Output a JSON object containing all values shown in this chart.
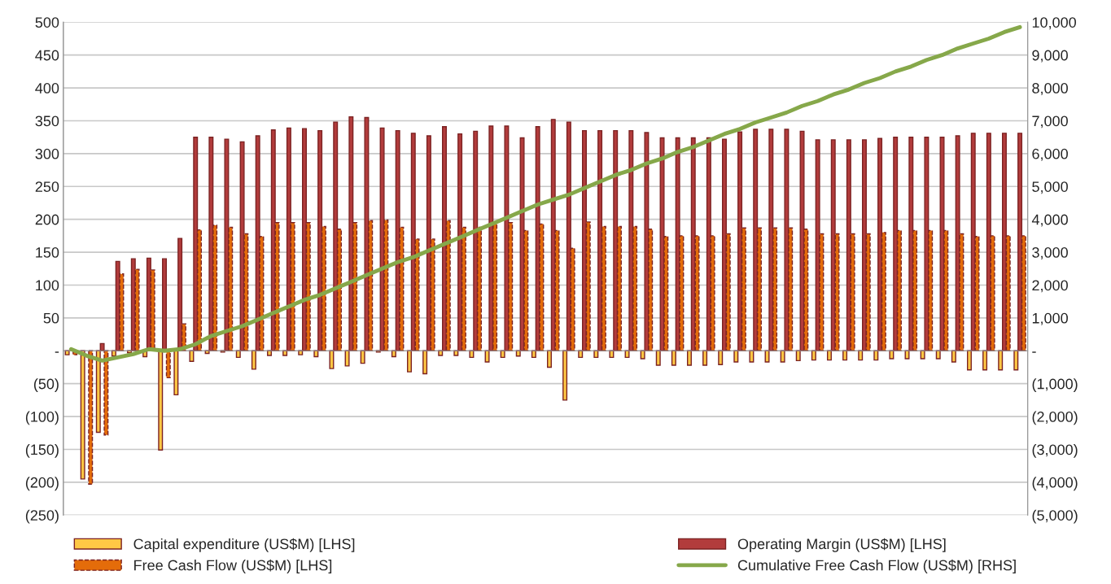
{
  "chart_data": {
    "type": "bar",
    "categories": [
      null,
      null,
      null,
      null,
      null,
      null,
      null,
      null,
      null,
      null,
      null,
      null,
      null,
      null,
      null,
      null,
      null,
      null,
      null,
      null,
      null,
      null,
      null,
      null,
      null,
      null,
      null,
      null,
      null,
      null,
      null,
      null,
      null,
      null,
      null,
      null,
      null,
      null,
      null,
      null,
      null,
      null,
      null,
      null,
      null,
      null,
      null,
      null,
      null,
      null,
      null,
      null,
      null,
      null,
      null,
      null,
      null,
      null,
      null,
      null,
      null,
      null
    ],
    "series": [
      {
        "name": "Capital expenditure (US$M) [LHS]",
        "color": "#ffc845",
        "values": [
          -6,
          -195,
          -124,
          -8,
          -3,
          -9,
          -151,
          -67,
          -16,
          -4,
          -2,
          -10,
          -28,
          -7,
          -7,
          -6,
          -9,
          -27,
          -23,
          -19,
          -2,
          -9,
          -32,
          -35,
          -7,
          -7,
          -10,
          -17,
          -10,
          -8,
          -10,
          -25,
          -75,
          -10,
          -10,
          -10,
          -10,
          -12,
          -22,
          -22,
          -22,
          -22,
          -21,
          -17,
          -17,
          -17,
          -17,
          -15,
          -14,
          -14,
          -14,
          -14,
          -14,
          -12,
          -12,
          -12,
          -12,
          -17,
          -29,
          -29,
          -29,
          -29
        ]
      },
      {
        "name": "Operating Margin (US$M) [LHS]",
        "color": "#b23c3c",
        "values": [
          null,
          null,
          11,
          136,
          140,
          141,
          140,
          171,
          325,
          325,
          322,
          318,
          327,
          336,
          339,
          338,
          335,
          348,
          356,
          355,
          339,
          335,
          331,
          327,
          341,
          330,
          334,
          342,
          342,
          324,
          341,
          352,
          348,
          335,
          335,
          335,
          335,
          332,
          324,
          324,
          324,
          324,
          322,
          333,
          337,
          337,
          337,
          334,
          321,
          321,
          321,
          321,
          323,
          325,
          325,
          325,
          325,
          327,
          331,
          331,
          331,
          331
        ]
      },
      {
        "name": "Free Cash Flow (US$M) [LHS]",
        "color": "#e46c0a",
        "line_style": "dashed",
        "values": [
          -6,
          -203,
          -128,
          117,
          124,
          123,
          -41,
          41,
          184,
          191,
          188,
          178,
          174,
          195,
          195,
          195,
          189,
          185,
          195,
          198,
          199,
          188,
          170,
          170,
          198,
          188,
          188,
          195,
          195,
          183,
          193,
          183,
          156,
          196,
          189,
          189,
          189,
          185,
          174,
          175,
          175,
          175,
          178,
          187,
          187,
          187,
          187,
          185,
          178,
          178,
          178,
          178,
          180,
          183,
          183,
          183,
          183,
          178,
          174,
          175,
          175,
          175
        ]
      },
      {
        "name": "Cumulative Free Cash Flow (US$M) [RHS]",
        "type": "line",
        "axis": "y2",
        "color": "#86a84a",
        "values": [
          50,
          -150,
          -300,
          -200,
          -100,
          50,
          0,
          50,
          200,
          450,
          600,
          750,
          950,
          1150,
          1350,
          1550,
          1700,
          1900,
          2100,
          2300,
          2500,
          2700,
          2850,
          3050,
          3250,
          3450,
          3650,
          3850,
          4050,
          4250,
          4450,
          4600,
          4750,
          4950,
          5150,
          5350,
          5500,
          5700,
          5850,
          6050,
          6200,
          6400,
          6600,
          6750,
          6950,
          7100,
          7250,
          7450,
          7600,
          7800,
          7950,
          8150,
          8300,
          8500,
          8650,
          8850,
          9000,
          9200,
          9350,
          9500,
          9700,
          9850
        ]
      }
    ],
    "ylim": [
      -250,
      500
    ],
    "yticks": [
      {
        "value": -250,
        "label": "(250)"
      },
      {
        "value": -200,
        "label": "(200)"
      },
      {
        "value": -150,
        "label": "(150)"
      },
      {
        "value": -100,
        "label": "(100)"
      },
      {
        "value": -50,
        "label": "(50)"
      },
      {
        "value": 0,
        "label": "-"
      },
      50,
      100,
      150,
      200,
      250,
      300,
      350,
      400,
      450,
      500
    ],
    "y2lim": [
      -5000,
      10000
    ],
    "y2ticks": [
      {
        "value": -5000,
        "label": "(5,000)"
      },
      {
        "value": -4000,
        "label": "(4,000)"
      },
      {
        "value": -3000,
        "label": "(3,000)"
      },
      {
        "value": -2000,
        "label": "(2,000)"
      },
      {
        "value": -1000,
        "label": "(1,000)"
      },
      {
        "value": 0,
        "label": "-"
      },
      {
        "value": 1000,
        "label": "1,000"
      },
      {
        "value": 2000,
        "label": "2,000"
      },
      {
        "value": 3000,
        "label": "3,000"
      },
      {
        "value": 4000,
        "label": "4,000"
      },
      {
        "value": 5000,
        "label": "5,000"
      },
      {
        "value": 6000,
        "label": "6,000"
      },
      {
        "value": 7000,
        "label": "7,000"
      },
      {
        "value": 8000,
        "label": "8,000"
      },
      {
        "value": 9000,
        "label": "9,000"
      },
      {
        "value": 10000,
        "label": "10,000"
      }
    ],
    "grid": "y",
    "legend": "bottom"
  }
}
